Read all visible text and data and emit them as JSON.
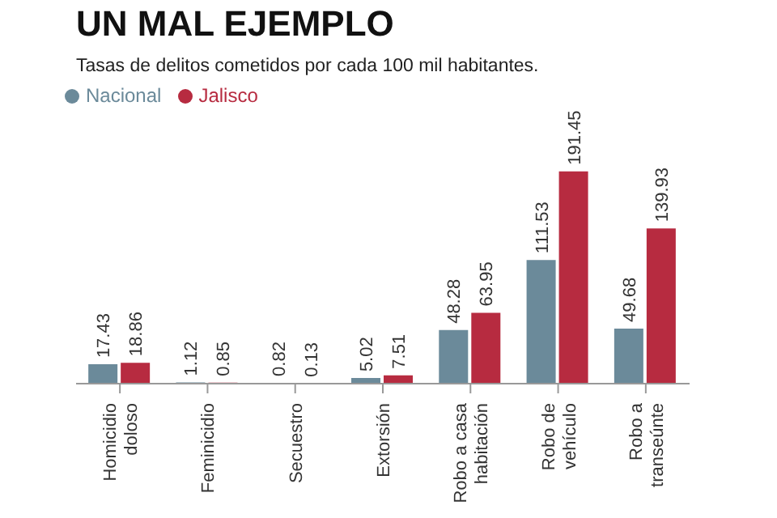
{
  "chart_data": {
    "type": "bar",
    "title": "UN MAL EJEMPLO",
    "subtitle": "Tasas de delitos cometidos por cada 100 mil habitantes.",
    "categories": [
      "Homicidio doloso",
      "Feminicidio",
      "Secuestro",
      "Extorsión",
      "Robo a casa habitación",
      "Robo de vehículo",
      "Robo a transeúnte"
    ],
    "series": [
      {
        "name": "Nacional",
        "color": "#6b8a9a",
        "values": [
          17.43,
          1.12,
          0.82,
          5.02,
          48.28,
          111.53,
          49.68
        ]
      },
      {
        "name": "Jalisco",
        "color": "#b72b40",
        "values": [
          18.86,
          0.85,
          0.13,
          7.51,
          63.95,
          191.45,
          139.93
        ]
      }
    ],
    "tick_labels": "x",
    "legend": "top left",
    "data_labels": true
  }
}
